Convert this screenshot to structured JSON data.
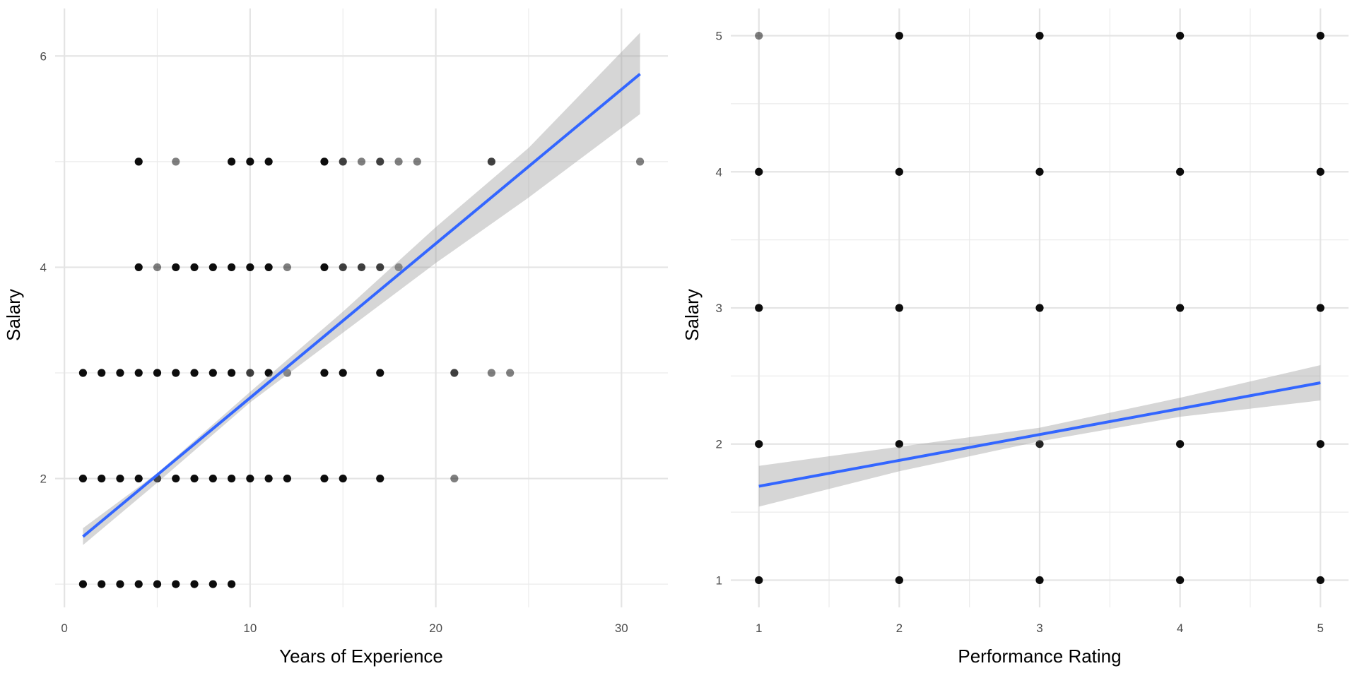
{
  "chart_data": [
    {
      "type": "scatter",
      "title": "",
      "xlabel": "Years of Experience",
      "ylabel": "Salary",
      "xlim": [
        -0.5,
        32.5
      ],
      "ylim": [
        0.78,
        6.45
      ],
      "x_ticks": [
        0,
        10,
        20,
        30
      ],
      "x_minor": [
        5,
        15,
        25
      ],
      "y_ticks": [
        2,
        4,
        6
      ],
      "y_minor": [
        1,
        3,
        5
      ],
      "grid": true,
      "legend": "none",
      "colors": {
        "point": "#000000",
        "line": "#3366FF",
        "band": "#999999"
      },
      "points": [
        {
          "x": 1,
          "y": 1,
          "a": 0.95
        },
        {
          "x": 2,
          "y": 1,
          "a": 0.95
        },
        {
          "x": 3,
          "y": 1,
          "a": 0.95
        },
        {
          "x": 4,
          "y": 1,
          "a": 0.95
        },
        {
          "x": 5,
          "y": 1,
          "a": 0.95
        },
        {
          "x": 6,
          "y": 1,
          "a": 0.95
        },
        {
          "x": 7,
          "y": 1,
          "a": 0.95
        },
        {
          "x": 8,
          "y": 1,
          "a": 0.95
        },
        {
          "x": 9,
          "y": 1,
          "a": 0.95
        },
        {
          "x": 1,
          "y": 2,
          "a": 0.95
        },
        {
          "x": 2,
          "y": 2,
          "a": 0.95
        },
        {
          "x": 3,
          "y": 2,
          "a": 0.95
        },
        {
          "x": 4,
          "y": 2,
          "a": 0.95
        },
        {
          "x": 5,
          "y": 2,
          "a": 0.95
        },
        {
          "x": 6,
          "y": 2,
          "a": 0.95
        },
        {
          "x": 7,
          "y": 2,
          "a": 0.95
        },
        {
          "x": 8,
          "y": 2,
          "a": 0.95
        },
        {
          "x": 9,
          "y": 2,
          "a": 0.95
        },
        {
          "x": 10,
          "y": 2,
          "a": 0.95
        },
        {
          "x": 11,
          "y": 2,
          "a": 0.95
        },
        {
          "x": 12,
          "y": 2,
          "a": 0.95
        },
        {
          "x": 14,
          "y": 2,
          "a": 0.95
        },
        {
          "x": 15,
          "y": 2,
          "a": 0.95
        },
        {
          "x": 17,
          "y": 2,
          "a": 0.95
        },
        {
          "x": 21,
          "y": 2,
          "a": 0.5
        },
        {
          "x": 1,
          "y": 3,
          "a": 0.95
        },
        {
          "x": 2,
          "y": 3,
          "a": 0.95
        },
        {
          "x": 3,
          "y": 3,
          "a": 0.95
        },
        {
          "x": 4,
          "y": 3,
          "a": 0.95
        },
        {
          "x": 5,
          "y": 3,
          "a": 0.95
        },
        {
          "x": 6,
          "y": 3,
          "a": 0.95
        },
        {
          "x": 7,
          "y": 3,
          "a": 0.95
        },
        {
          "x": 8,
          "y": 3,
          "a": 0.95
        },
        {
          "x": 9,
          "y": 3,
          "a": 0.95
        },
        {
          "x": 10,
          "y": 3,
          "a": 0.75
        },
        {
          "x": 11,
          "y": 3,
          "a": 0.95
        },
        {
          "x": 12,
          "y": 3,
          "a": 0.5
        },
        {
          "x": 14,
          "y": 3,
          "a": 0.95
        },
        {
          "x": 15,
          "y": 3,
          "a": 0.95
        },
        {
          "x": 17,
          "y": 3,
          "a": 0.95
        },
        {
          "x": 21,
          "y": 3,
          "a": 0.75
        },
        {
          "x": 23,
          "y": 3,
          "a": 0.5
        },
        {
          "x": 24,
          "y": 3,
          "a": 0.5
        },
        {
          "x": 4,
          "y": 4,
          "a": 0.95
        },
        {
          "x": 5,
          "y": 4,
          "a": 0.5
        },
        {
          "x": 6,
          "y": 4,
          "a": 0.95
        },
        {
          "x": 7,
          "y": 4,
          "a": 0.95
        },
        {
          "x": 8,
          "y": 4,
          "a": 0.95
        },
        {
          "x": 9,
          "y": 4,
          "a": 0.95
        },
        {
          "x": 10,
          "y": 4,
          "a": 0.95
        },
        {
          "x": 11,
          "y": 4,
          "a": 0.95
        },
        {
          "x": 12,
          "y": 4,
          "a": 0.5
        },
        {
          "x": 14,
          "y": 4,
          "a": 0.95
        },
        {
          "x": 15,
          "y": 4,
          "a": 0.75
        },
        {
          "x": 16,
          "y": 4,
          "a": 0.75
        },
        {
          "x": 17,
          "y": 4,
          "a": 0.75
        },
        {
          "x": 18,
          "y": 4,
          "a": 0.5
        },
        {
          "x": 4,
          "y": 5,
          "a": 0.95
        },
        {
          "x": 6,
          "y": 5,
          "a": 0.5
        },
        {
          "x": 9,
          "y": 5,
          "a": 0.95
        },
        {
          "x": 10,
          "y": 5,
          "a": 0.95
        },
        {
          "x": 11,
          "y": 5,
          "a": 0.95
        },
        {
          "x": 14,
          "y": 5,
          "a": 0.95
        },
        {
          "x": 15,
          "y": 5,
          "a": 0.75
        },
        {
          "x": 16,
          "y": 5,
          "a": 0.5
        },
        {
          "x": 17,
          "y": 5,
          "a": 0.75
        },
        {
          "x": 18,
          "y": 5,
          "a": 0.5
        },
        {
          "x": 19,
          "y": 5,
          "a": 0.5
        },
        {
          "x": 23,
          "y": 5,
          "a": 0.75
        },
        {
          "x": 31,
          "y": 5,
          "a": 0.5
        }
      ],
      "fit_line": {
        "x": [
          1,
          31
        ],
        "y": [
          1.45,
          5.83
        ]
      },
      "fit_band": {
        "x": [
          1,
          5,
          10,
          15,
          20,
          25,
          31
        ],
        "lower": [
          1.37,
          1.96,
          2.72,
          3.38,
          4.04,
          4.66,
          5.45
        ],
        "upper": [
          1.53,
          2.05,
          2.82,
          3.58,
          4.38,
          5.13,
          6.22
        ]
      }
    },
    {
      "type": "scatter",
      "title": "",
      "xlabel": "Performance Rating",
      "ylabel": "Salary",
      "xlim": [
        0.8,
        5.2
      ],
      "ylim": [
        0.8,
        5.2
      ],
      "x_ticks": [
        1,
        2,
        3,
        4,
        5
      ],
      "x_minor": [
        1.5,
        2.5,
        3.5,
        4.5
      ],
      "y_ticks": [
        1,
        2,
        3,
        4,
        5
      ],
      "y_minor": [
        1.5,
        2.5,
        3.5,
        4.5
      ],
      "grid": true,
      "legend": "none",
      "colors": {
        "point": "#000000",
        "line": "#3366FF",
        "band": "#999999"
      },
      "points": [
        {
          "x": 1,
          "y": 1,
          "a": 0.95
        },
        {
          "x": 1,
          "y": 2,
          "a": 0.95
        },
        {
          "x": 1,
          "y": 3,
          "a": 0.95
        },
        {
          "x": 1,
          "y": 4,
          "a": 0.95
        },
        {
          "x": 1,
          "y": 5,
          "a": 0.5
        },
        {
          "x": 2,
          "y": 1,
          "a": 0.95
        },
        {
          "x": 2,
          "y": 2,
          "a": 0.95
        },
        {
          "x": 2,
          "y": 3,
          "a": 0.95
        },
        {
          "x": 2,
          "y": 4,
          "a": 0.95
        },
        {
          "x": 2,
          "y": 5,
          "a": 0.95
        },
        {
          "x": 3,
          "y": 1,
          "a": 0.95
        },
        {
          "x": 3,
          "y": 2,
          "a": 0.85
        },
        {
          "x": 3,
          "y": 3,
          "a": 0.95
        },
        {
          "x": 3,
          "y": 4,
          "a": 0.95
        },
        {
          "x": 3,
          "y": 5,
          "a": 0.95
        },
        {
          "x": 4,
          "y": 1,
          "a": 0.95
        },
        {
          "x": 4,
          "y": 2,
          "a": 0.95
        },
        {
          "x": 4,
          "y": 3,
          "a": 0.95
        },
        {
          "x": 4,
          "y": 4,
          "a": 0.95
        },
        {
          "x": 4,
          "y": 5,
          "a": 0.95
        },
        {
          "x": 5,
          "y": 1,
          "a": 0.95
        },
        {
          "x": 5,
          "y": 2,
          "a": 0.95
        },
        {
          "x": 5,
          "y": 3,
          "a": 0.95
        },
        {
          "x": 5,
          "y": 4,
          "a": 0.95
        },
        {
          "x": 5,
          "y": 5,
          "a": 0.95
        }
      ],
      "fit_line": {
        "x": [
          1,
          5
        ],
        "y": [
          1.69,
          2.45
        ]
      },
      "fit_band": {
        "x": [
          1,
          2,
          3,
          4,
          5
        ],
        "lower": [
          1.54,
          1.8,
          2.02,
          2.2,
          2.32
        ],
        "upper": [
          1.84,
          1.98,
          2.12,
          2.34,
          2.58
        ]
      }
    }
  ]
}
